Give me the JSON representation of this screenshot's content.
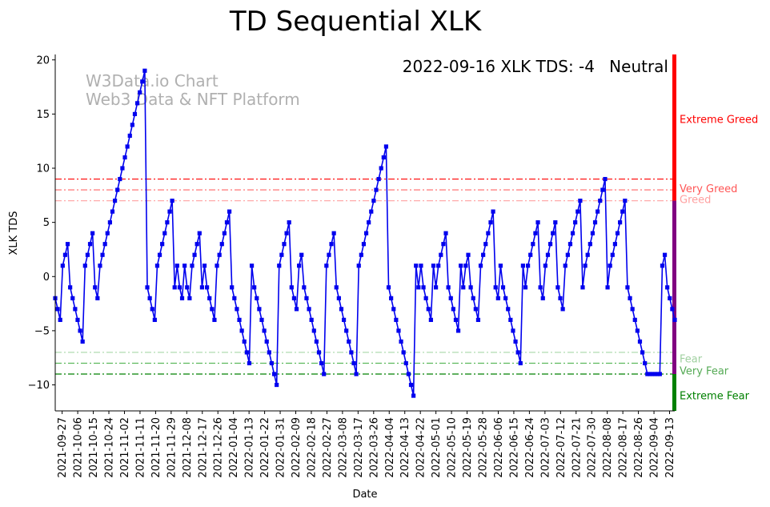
{
  "chart_data": {
    "type": "line",
    "title": "TD Sequential XLK",
    "xlabel": "Date",
    "ylabel": "XLK TDS",
    "ylim": [
      -12.4,
      20.5
    ],
    "yticks": [
      -10,
      -5,
      0,
      5,
      10,
      15,
      20
    ],
    "xtick_labels": [
      "2021-09-27",
      "2021-10-06",
      "2021-10-15",
      "2021-10-24",
      "2021-11-02",
      "2021-11-11",
      "2021-11-20",
      "2021-11-29",
      "2021-12-08",
      "2021-12-17",
      "2021-12-26",
      "2022-01-04",
      "2022-01-13",
      "2022-01-22",
      "2022-01-31",
      "2022-02-09",
      "2022-02-18",
      "2022-02-27",
      "2022-03-08",
      "2022-03-17",
      "2022-03-26",
      "2022-04-04",
      "2022-04-13",
      "2022-04-22",
      "2022-05-01",
      "2022-05-10",
      "2022-05-19",
      "2022-05-28",
      "2022-06-06",
      "2022-06-15",
      "2022-06-24",
      "2022-07-03",
      "2022-07-12",
      "2022-07-21",
      "2022-07-30",
      "2022-08-08",
      "2022-08-17",
      "2022-08-26",
      "2022-09-04",
      "2022-09-13"
    ],
    "xtick_step_days": 9,
    "start_offset_days": -4,
    "series": [
      {
        "name": "XLK TDS",
        "color": "#0000ee",
        "marker": "square",
        "values": [
          -2,
          -3,
          -4,
          1,
          2,
          3,
          -1,
          -2,
          -3,
          -4,
          -5,
          -6,
          1,
          2,
          3,
          4,
          -1,
          -2,
          1,
          2,
          3,
          4,
          5,
          6,
          7,
          8,
          9,
          10,
          11,
          12,
          13,
          14,
          15,
          16,
          17,
          18,
          19,
          -1,
          -2,
          -3,
          -4,
          1,
          2,
          3,
          4,
          5,
          6,
          7,
          -1,
          1,
          -1,
          -2,
          1,
          -1,
          -2,
          1,
          2,
          3,
          4,
          -1,
          1,
          -1,
          -2,
          -3,
          -4,
          1,
          2,
          3,
          4,
          5,
          6,
          -1,
          -2,
          -3,
          -4,
          -5,
          -6,
          -7,
          -8,
          1,
          -1,
          -2,
          -3,
          -4,
          -5,
          -6,
          -7,
          -8,
          -9,
          -10,
          1,
          2,
          3,
          4,
          5,
          -1,
          -2,
          -3,
          1,
          2,
          -1,
          -2,
          -3,
          -4,
          -5,
          -6,
          -7,
          -8,
          -9,
          1,
          2,
          3,
          4,
          -1,
          -2,
          -3,
          -4,
          -5,
          -6,
          -7,
          -8,
          -9,
          1,
          2,
          3,
          4,
          5,
          6,
          7,
          8,
          9,
          10,
          11,
          12,
          -1,
          -2,
          -3,
          -4,
          -5,
          -6,
          -7,
          -8,
          -9,
          -10,
          -11,
          1,
          -1,
          1,
          -1,
          -2,
          -3,
          -4,
          1,
          -1,
          1,
          2,
          3,
          4,
          -1,
          -2,
          -3,
          -4,
          -5,
          1,
          -1,
          1,
          2,
          -1,
          -2,
          -3,
          -4,
          1,
          2,
          3,
          4,
          5,
          6,
          -1,
          -2,
          1,
          -1,
          -2,
          -3,
          -4,
          -5,
          -6,
          -7,
          -8,
          1,
          -1,
          1,
          2,
          3,
          4,
          5,
          -1,
          -2,
          1,
          2,
          3,
          4,
          5,
          -1,
          -2,
          -3,
          1,
          2,
          3,
          4,
          5,
          6,
          7,
          -1,
          1,
          2,
          3,
          4,
          5,
          6,
          7,
          8,
          9,
          -1,
          1,
          2,
          3,
          4,
          5,
          6,
          7,
          -1,
          -2,
          -3,
          -4,
          -5,
          -6,
          -7,
          -8,
          -9,
          -9,
          -9,
          -9,
          -9,
          -9,
          1,
          2,
          -1,
          -2,
          -3,
          -4
        ]
      }
    ],
    "reference_lines": [
      {
        "value": 9,
        "label": "Very Greed",
        "color": "#ff0000",
        "style": "dashdot"
      },
      {
        "value": 8,
        "label": "",
        "color": "#ff6666",
        "style": "dashdot"
      },
      {
        "value": 7,
        "label": "Greed",
        "color": "#ffaaaa",
        "style": "dashdot"
      },
      {
        "value": -7,
        "label": "Fear",
        "color": "#a8d8a8",
        "style": "dashdot"
      },
      {
        "value": -8,
        "label": "Very Fear",
        "color": "#5cb85c",
        "style": "dashdot"
      },
      {
        "value": -9,
        "label": "Extreme Fear",
        "color": "#008000",
        "style": "dashdot"
      }
    ],
    "zone_labels": [
      {
        "label": "Extreme Greed",
        "y": 14.5,
        "color": "#ff0000"
      },
      {
        "label": "Very Greed",
        "y": 8.1,
        "color": "#ff5555"
      },
      {
        "label": "Greed",
        "y": 7.1,
        "color": "#ffa0a0"
      },
      {
        "label": "Fear",
        "y": -7.6,
        "color": "#a0d0a0"
      },
      {
        "label": "Very Fear",
        "y": -8.7,
        "color": "#55aa55"
      },
      {
        "label": "Extreme Fear",
        "y": -11.0,
        "color": "#008000"
      }
    ],
    "side_bar": [
      {
        "from": 7,
        "to": 20.5,
        "color": "#ff0000"
      },
      {
        "from": -9,
        "to": 7,
        "color": "#800080"
      },
      {
        "from": -12.4,
        "to": -9,
        "color": "#008000"
      }
    ],
    "annotation": {
      "text": "2022-09-16 XLK TDS: -4",
      "status": "Neutral",
      "status_color": "#800080"
    },
    "watermark": [
      "W3Data.io Chart",
      "Web3 Data & NFT Platform"
    ]
  }
}
